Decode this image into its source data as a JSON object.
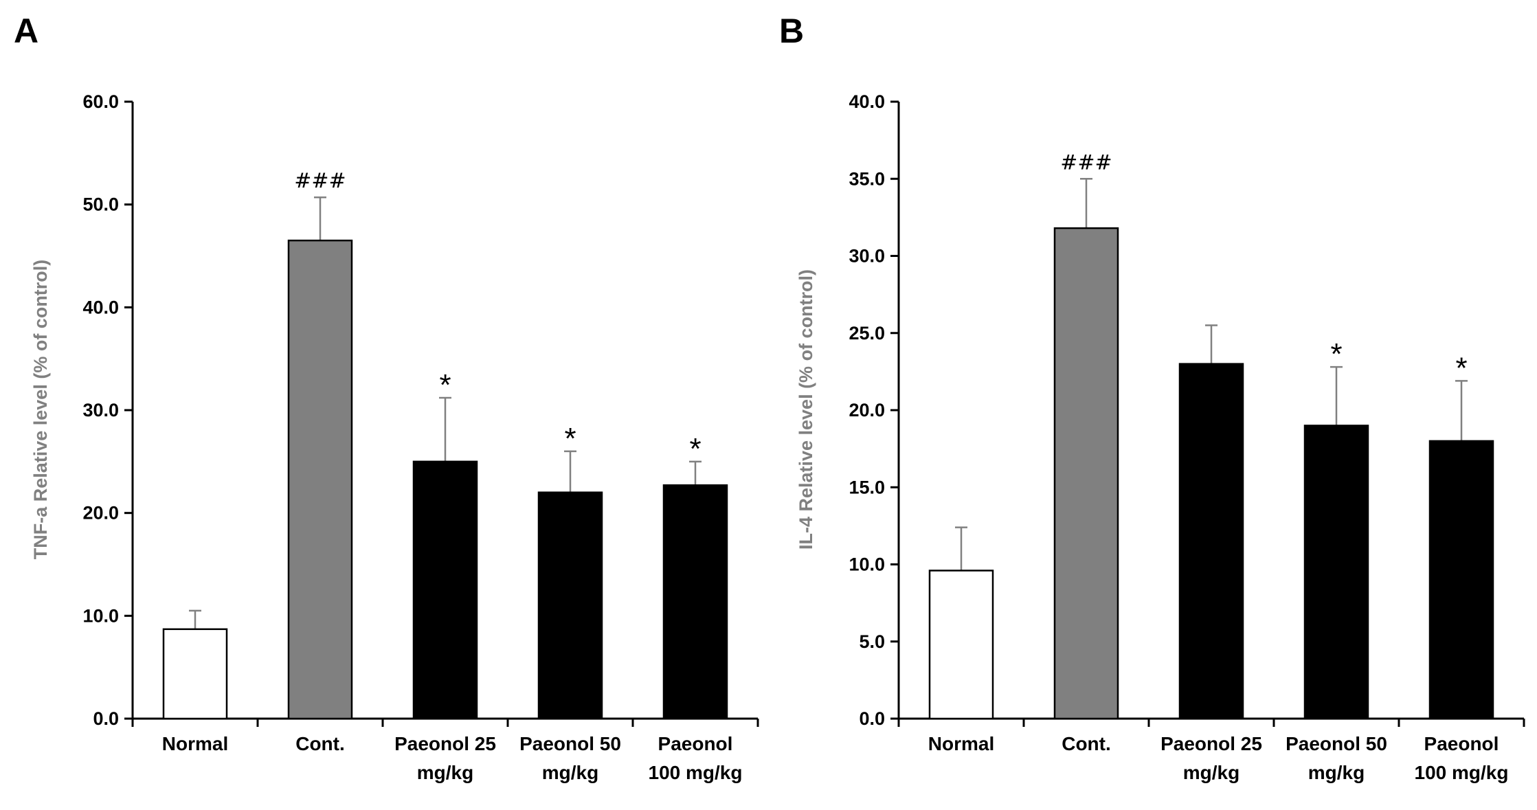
{
  "chart_data": [
    {
      "panel": "A",
      "type": "bar",
      "title": "",
      "xlabel": "",
      "ylabel": "TNF-a Relative level (% of control)",
      "ylim": [
        0,
        60
      ],
      "ytick_step": 10,
      "yticks": [
        "0.0",
        "10.0",
        "20.0",
        "30.0",
        "40.0",
        "50.0",
        "60.0"
      ],
      "categories": [
        [
          "Normal"
        ],
        [
          "Cont."
        ],
        [
          "Paeonol  25",
          "mg/kg"
        ],
        [
          "Paeonol 50",
          "mg/kg"
        ],
        [
          "Paeonol",
          "100  mg/kg"
        ]
      ],
      "values": [
        8.7,
        46.5,
        25.0,
        22.0,
        22.7
      ],
      "errors": [
        1.8,
        4.2,
        6.2,
        4.0,
        2.3
      ],
      "bar_colors": [
        "#ffffff",
        "#808080",
        "#000000",
        "#000000",
        "#000000"
      ],
      "annotations": [
        "",
        "###",
        "*",
        "*",
        "*"
      ],
      "legend": "none",
      "grid": false
    },
    {
      "panel": "B",
      "type": "bar",
      "title": "",
      "xlabel": "",
      "ylabel": "IL-4 Relative level (% of control)",
      "ylim": [
        0,
        40
      ],
      "ytick_step": 5,
      "yticks": [
        "0.0",
        "5.0",
        "10.0",
        "15.0",
        "20.0",
        "25.0",
        "30.0",
        "35.0",
        "40.0"
      ],
      "categories": [
        [
          "Normal"
        ],
        [
          "Cont."
        ],
        [
          "Paeonol  25",
          "mg/kg"
        ],
        [
          "Paeonol 50",
          "mg/kg"
        ],
        [
          "Paeonol",
          "100  mg/kg"
        ]
      ],
      "values": [
        9.6,
        31.8,
        23.0,
        19.0,
        18.0
      ],
      "errors": [
        2.8,
        3.2,
        2.5,
        3.8,
        3.9
      ],
      "bar_colors": [
        "#ffffff",
        "#808080",
        "#000000",
        "#000000",
        "#000000"
      ],
      "annotations": [
        "###",
        "",
        "*",
        "*"
      ],
      "annotation_targets": [
        1,
        -1,
        3,
        4
      ],
      "legend": "none",
      "grid": false
    }
  ]
}
